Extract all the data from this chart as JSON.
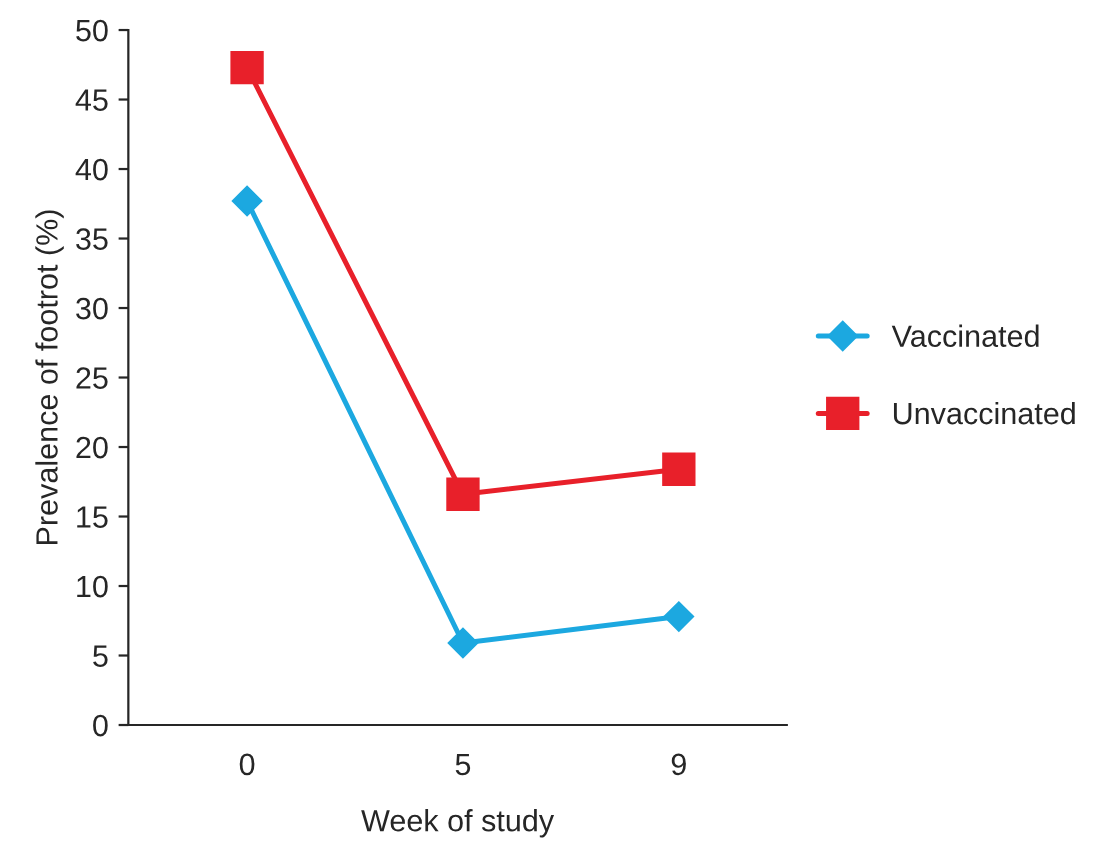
{
  "chart_data": {
    "type": "line",
    "xlabel": "Week of study",
    "ylabel": "Prevalence of footrot (%)",
    "categories": [
      "0",
      "5",
      "9"
    ],
    "series": [
      {
        "name": "Vaccinated",
        "color": "#1ca8e0",
        "values": [
          37.7,
          5.9,
          7.8
        ],
        "marker": "diamond"
      },
      {
        "name": "Unvaccinated",
        "color": "#e8202a",
        "values": [
          47.3,
          16.6,
          18.4
        ],
        "marker": "square"
      }
    ],
    "ylim": [
      0,
      50
    ],
    "yticks": [
      0,
      5,
      10,
      15,
      20,
      25,
      30,
      35,
      40,
      45,
      50
    ],
    "grid": false,
    "legend": "right"
  }
}
